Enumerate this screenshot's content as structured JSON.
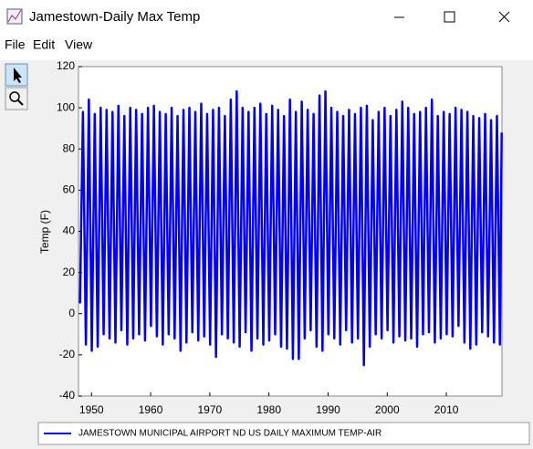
{
  "window": {
    "title": "Jamestown-Daily Max Temp",
    "menu": [
      "File",
      "Edit",
      "View"
    ]
  },
  "chart_data": {
    "type": "line",
    "ylabel": "Temp (F)",
    "x": [
      1948.05,
      1948.55,
      1949.05,
      1949.55,
      1950.05,
      1950.55,
      1951.05,
      1951.55,
      1952.05,
      1952.55,
      1953.05,
      1953.55,
      1954.05,
      1954.55,
      1955.05,
      1955.55,
      1956.05,
      1956.55,
      1957.05,
      1957.55,
      1958.05,
      1958.55,
      1959.05,
      1959.55,
      1960.05,
      1960.55,
      1961.05,
      1961.55,
      1962.05,
      1962.55,
      1963.05,
      1963.55,
      1964.05,
      1964.55,
      1965.05,
      1965.55,
      1966.05,
      1966.55,
      1967.05,
      1967.55,
      1968.05,
      1968.55,
      1969.05,
      1969.55,
      1970.05,
      1970.55,
      1971.05,
      1971.55,
      1972.05,
      1972.55,
      1973.05,
      1973.55,
      1974.05,
      1974.55,
      1975.05,
      1975.55,
      1976.05,
      1976.55,
      1977.05,
      1977.55,
      1978.05,
      1978.55,
      1979.05,
      1979.55,
      1980.05,
      1980.55,
      1981.05,
      1981.55,
      1982.05,
      1982.55,
      1983.05,
      1983.55,
      1984.05,
      1984.55,
      1985.05,
      1985.55,
      1986.05,
      1986.55,
      1987.05,
      1987.55,
      1988.05,
      1988.55,
      1989.05,
      1989.55,
      1990.05,
      1990.55,
      1991.05,
      1991.55,
      1992.05,
      1992.55,
      1993.05,
      1993.55,
      1994.05,
      1994.55,
      1995.05,
      1995.55,
      1996.05,
      1996.55,
      1997.05,
      1997.55,
      1998.05,
      1998.55,
      1999.05,
      1999.55,
      2000.05,
      2000.55,
      2001.05,
      2001.55,
      2002.05,
      2002.55,
      2003.05,
      2003.55,
      2004.05,
      2004.55,
      2005.05,
      2005.55,
      2006.05,
      2006.55,
      2007.05,
      2007.55,
      2008.05,
      2008.55,
      2009.05,
      2009.55,
      2010.05,
      2010.55,
      2011.05,
      2011.55,
      2012.05,
      2012.55,
      2013.05,
      2013.55,
      2014.05,
      2014.55,
      2015.05,
      2015.55,
      2016.05,
      2016.55,
      2017.05,
      2017.55,
      2018.05,
      2018.55,
      2019.05,
      2019.35
    ],
    "series": [
      {
        "name": "JAMESTOWN MUNICIPAL AIRPORT ND US DAILY MAXIMUM TEMP-AIR",
        "color": "#0000ff",
        "values": [
          5,
          98,
          -15,
          104,
          -18,
          97,
          -16,
          100,
          -10,
          99,
          -12,
          98,
          -14,
          101,
          -8,
          96,
          -15,
          100,
          -12,
          99,
          -10,
          97,
          -13,
          100,
          -6,
          101,
          -11,
          98,
          -15,
          97,
          -10,
          100,
          -12,
          96,
          -18,
          99,
          -14,
          100,
          -9,
          98,
          -13,
          102,
          -11,
          97,
          -15,
          99,
          -21,
          100,
          -10,
          96,
          -12,
          104,
          -14,
          108,
          -16,
          100,
          -9,
          98,
          -18,
          100,
          -12,
          102,
          -15,
          97,
          -13,
          101,
          -10,
          99,
          -16,
          96,
          -17,
          104,
          -22,
          98,
          -22,
          103,
          -12,
          99,
          -8,
          97,
          -16,
          106,
          -18,
          108,
          -10,
          100,
          -12,
          98,
          -15,
          96,
          -8,
          99,
          -14,
          97,
          -12,
          100,
          -25,
          101,
          -16,
          94,
          -10,
          98,
          -12,
          100,
          -8,
          96,
          -14,
          99,
          -11,
          103,
          -13,
          100,
          -12,
          97,
          -16,
          98,
          -10,
          100,
          -9,
          104,
          -14,
          96,
          -12,
          98,
          -10,
          97,
          -11,
          100,
          -6,
          99,
          -14,
          98,
          -17,
          96,
          -15,
          95,
          -9,
          97,
          -11,
          94,
          -14,
          96,
          -15,
          88
        ]
      }
    ],
    "xlim": [
      1947.8,
      2019.4
    ],
    "xticks": [
      1950,
      1960,
      1970,
      1980,
      1990,
      2000,
      2010
    ],
    "ylim": [
      -40,
      120
    ],
    "yticks": [
      -40,
      -20,
      0,
      20,
      40,
      60,
      80,
      100,
      120
    ],
    "grid": false
  }
}
